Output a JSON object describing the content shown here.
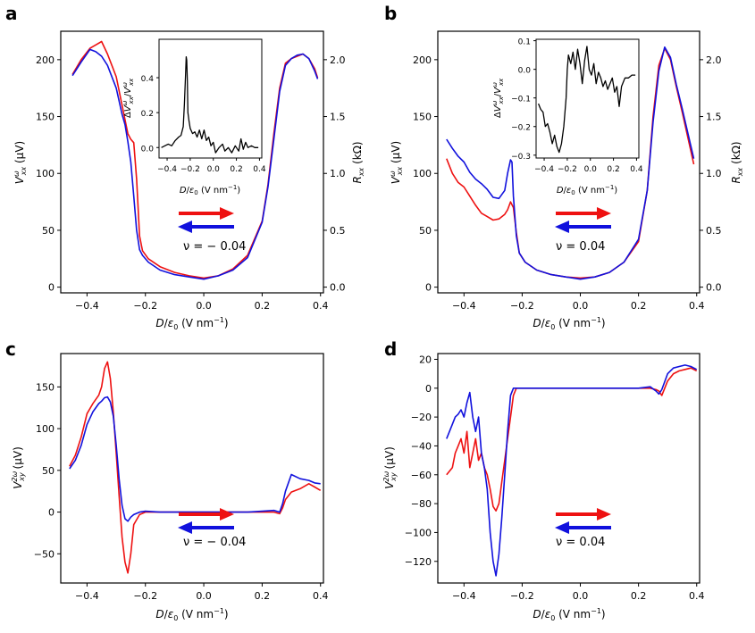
{
  "figure": {
    "panel_labels": [
      "a",
      "b",
      "c",
      "d"
    ],
    "legend_arrows": {
      "forward": "#ee1111",
      "backward": "#1111dd"
    }
  },
  "chart_data": [
    {
      "id": "a",
      "type": "line",
      "label": "a",
      "xlabel": "D/ε₀ (V nm⁻¹)",
      "ylabel": "V_xx^ω (μV)",
      "ylabel_right": "R_xx (kΩ)",
      "xlim": [
        -0.49,
        0.41
      ],
      "ylim": [
        -5,
        225
      ],
      "xticks": [
        -0.4,
        -0.2,
        0.0,
        0.2,
        0.4
      ],
      "xtick_labels": [
        "−0.4",
        "−0.2",
        "0.0",
        "0.2",
        "0.4"
      ],
      "yticks": [
        0,
        50,
        100,
        150,
        200
      ],
      "ytick_labels": [
        "0",
        "50",
        "100",
        "150",
        "200"
      ],
      "yticks_right": [
        0,
        0.5,
        1.0,
        1.5,
        2.0
      ],
      "ytick_labels_right": [
        "0.0",
        "0.5",
        "1.0",
        "1.5",
        "2.0"
      ],
      "annotation": "ν = − 0.04",
      "series": [
        {
          "name": "forward sweep",
          "color": "#ee1111",
          "x": [
            -0.45,
            -0.42,
            -0.39,
            -0.37,
            -0.35,
            -0.33,
            -0.3,
            -0.28,
            -0.26,
            -0.25,
            -0.24,
            -0.23,
            -0.22,
            -0.21,
            -0.19,
            -0.15,
            -0.1,
            -0.05,
            0.0,
            0.05,
            0.1,
            0.15,
            0.2,
            0.22,
            0.24,
            0.26,
            0.28,
            0.3,
            0.32,
            0.34,
            0.36,
            0.38,
            0.39
          ],
          "y": [
            187,
            200,
            210,
            213,
            216,
            205,
            185,
            160,
            135,
            130,
            127,
            95,
            45,
            32,
            25,
            18,
            13,
            10,
            8,
            10,
            16,
            28,
            58,
            90,
            135,
            175,
            197,
            201,
            203,
            205,
            201,
            192,
            184
          ]
        },
        {
          "name": "backward sweep",
          "color": "#1111dd",
          "x": [
            -0.45,
            -0.42,
            -0.39,
            -0.37,
            -0.35,
            -0.33,
            -0.3,
            -0.28,
            -0.27,
            -0.26,
            -0.25,
            -0.24,
            -0.23,
            -0.22,
            -0.21,
            -0.19,
            -0.15,
            -0.1,
            -0.05,
            0.0,
            0.05,
            0.1,
            0.15,
            0.2,
            0.22,
            0.24,
            0.26,
            0.28,
            0.3,
            0.32,
            0.34,
            0.36,
            0.38,
            0.39
          ],
          "y": [
            186,
            198,
            209,
            207,
            203,
            195,
            175,
            152,
            143,
            128,
            110,
            80,
            50,
            33,
            28,
            22,
            15,
            11,
            9,
            7,
            10,
            15,
            26,
            57,
            88,
            130,
            172,
            195,
            201,
            204,
            205,
            201,
            190,
            183
          ]
        }
      ],
      "inset": {
        "xlabel": "D/ε₀ (V nm⁻¹)",
        "ylabel": "ΔV_xx^ω/V_xx^ω",
        "xlim": [
          -0.47,
          0.42
        ],
        "ylim": [
          -0.06,
          0.62
        ],
        "xticks": [
          -0.4,
          -0.2,
          0.0,
          0.2,
          0.4
        ],
        "xtick_labels": [
          "−0.4",
          "−0.2",
          "0.0",
          "0.2",
          "0.4"
        ],
        "yticks": [
          0.0,
          0.2,
          0.4
        ],
        "ytick_labels": [
          "0.0",
          "0.2",
          "0.4"
        ],
        "series": [
          {
            "name": "difference",
            "color": "#000000",
            "x": [
              -0.45,
              -0.42,
              -0.39,
              -0.36,
              -0.33,
              -0.3,
              -0.28,
              -0.26,
              -0.25,
              -0.24,
              -0.235,
              -0.23,
              -0.225,
              -0.22,
              -0.21,
              -0.2,
              -0.18,
              -0.16,
              -0.14,
              -0.12,
              -0.1,
              -0.08,
              -0.06,
              -0.04,
              -0.02,
              0.0,
              0.02,
              0.05,
              0.08,
              0.1,
              0.13,
              0.16,
              0.19,
              0.22,
              0.24,
              0.26,
              0.28,
              0.3,
              0.33,
              0.36,
              0.39
            ],
            "y": [
              0.0,
              0.01,
              0.02,
              0.01,
              0.04,
              0.06,
              0.07,
              0.12,
              0.25,
              0.42,
              0.52,
              0.5,
              0.38,
              0.2,
              0.15,
              0.11,
              0.08,
              0.09,
              0.06,
              0.1,
              0.05,
              0.1,
              0.04,
              0.06,
              0.01,
              0.03,
              -0.03,
              0.0,
              0.02,
              -0.02,
              0.0,
              -0.03,
              0.01,
              -0.02,
              0.05,
              -0.01,
              0.03,
              0.0,
              0.01,
              0.0,
              0.0
            ]
          }
        ]
      }
    },
    {
      "id": "b",
      "type": "line",
      "label": "b",
      "xlabel": "D/ε₀ (V nm⁻¹)",
      "ylabel": "V_xx^ω (μV)",
      "ylabel_right": "R_xx (kΩ)",
      "xlim": [
        -0.49,
        0.41
      ],
      "ylim": [
        -5,
        225
      ],
      "xticks": [
        -0.4,
        -0.2,
        0.0,
        0.2,
        0.4
      ],
      "xtick_labels": [
        "−0.4",
        "−0.2",
        "0.0",
        "0.2",
        "0.4"
      ],
      "yticks": [
        0,
        50,
        100,
        150,
        200
      ],
      "ytick_labels": [
        "0",
        "50",
        "100",
        "150",
        "200"
      ],
      "yticks_right": [
        0,
        0.5,
        1.0,
        1.5,
        2.0
      ],
      "ytick_labels_right": [
        "0.0",
        "0.5",
        "1.0",
        "1.5",
        "2.0"
      ],
      "annotation": "ν = 0.04",
      "series": [
        {
          "name": "forward sweep",
          "color": "#ee1111",
          "x": [
            -0.46,
            -0.44,
            -0.42,
            -0.4,
            -0.38,
            -0.36,
            -0.34,
            -0.32,
            -0.3,
            -0.28,
            -0.26,
            -0.25,
            -0.24,
            -0.23,
            -0.22,
            -0.21,
            -0.19,
            -0.15,
            -0.1,
            -0.05,
            0.0,
            0.05,
            0.1,
            0.15,
            0.2,
            0.23,
            0.25,
            0.27,
            0.29,
            0.31,
            0.33,
            0.35,
            0.37,
            0.39
          ],
          "y": [
            113,
            100,
            92,
            88,
            80,
            72,
            65,
            62,
            59,
            60,
            64,
            68,
            75,
            70,
            48,
            30,
            22,
            15,
            11,
            9,
            8,
            9,
            13,
            22,
            40,
            85,
            150,
            195,
            210,
            200,
            176,
            154,
            131,
            108
          ]
        },
        {
          "name": "backward sweep",
          "color": "#1111dd",
          "x": [
            -0.46,
            -0.44,
            -0.42,
            -0.4,
            -0.38,
            -0.36,
            -0.34,
            -0.32,
            -0.3,
            -0.28,
            -0.26,
            -0.25,
            -0.24,
            -0.235,
            -0.23,
            -0.22,
            -0.21,
            -0.19,
            -0.15,
            -0.1,
            -0.05,
            0.0,
            0.05,
            0.1,
            0.15,
            0.2,
            0.23,
            0.25,
            0.27,
            0.29,
            0.31,
            0.33,
            0.35,
            0.37,
            0.39
          ],
          "y": [
            130,
            122,
            115,
            110,
            101,
            95,
            91,
            86,
            79,
            78,
            85,
            100,
            112,
            110,
            80,
            45,
            30,
            22,
            15,
            11,
            9,
            7,
            9,
            13,
            22,
            42,
            85,
            145,
            190,
            211,
            202,
            178,
            157,
            135,
            113
          ]
        }
      ],
      "inset": {
        "xlabel": "D/ε₀ (V nm⁻¹)",
        "ylabel": "ΔV_xx^ω/V_xx^ω",
        "xlim": [
          -0.47,
          0.42
        ],
        "ylim": [
          -0.31,
          0.105
        ],
        "xticks": [
          -0.4,
          -0.2,
          0.0,
          0.2,
          0.4
        ],
        "xtick_labels": [
          "−0.4",
          "−0.2",
          "0.0",
          "0.2",
          "0.4"
        ],
        "yticks": [
          -0.3,
          -0.2,
          -0.1,
          0.0,
          0.1
        ],
        "ytick_labels": [
          "−0.3",
          "−0.2",
          "−0.1",
          "0.0",
          "0.1"
        ],
        "series": [
          {
            "name": "difference",
            "color": "#000000",
            "x": [
              -0.45,
              -0.43,
              -0.41,
              -0.39,
              -0.37,
              -0.35,
              -0.33,
              -0.31,
              -0.29,
              -0.27,
              -0.25,
              -0.23,
              -0.21,
              -0.2,
              -0.19,
              -0.17,
              -0.15,
              -0.13,
              -0.11,
              -0.09,
              -0.07,
              -0.05,
              -0.03,
              -0.01,
              0.01,
              0.03,
              0.05,
              0.07,
              0.09,
              0.11,
              0.13,
              0.15,
              0.17,
              0.19,
              0.21,
              0.23,
              0.25,
              0.27,
              0.3,
              0.33,
              0.36,
              0.39
            ],
            "y": [
              -0.12,
              -0.14,
              -0.15,
              -0.2,
              -0.19,
              -0.22,
              -0.26,
              -0.23,
              -0.27,
              -0.29,
              -0.26,
              -0.2,
              -0.1,
              0.0,
              0.05,
              0.02,
              0.06,
              0.0,
              0.07,
              0.02,
              -0.05,
              0.03,
              0.08,
              0.0,
              -0.02,
              0.02,
              -0.05,
              -0.01,
              -0.03,
              -0.06,
              -0.04,
              -0.07,
              -0.05,
              -0.03,
              -0.08,
              -0.06,
              -0.13,
              -0.06,
              -0.03,
              -0.03,
              -0.02,
              -0.02
            ]
          }
        ]
      }
    },
    {
      "id": "c",
      "type": "line",
      "label": "c",
      "xlabel": "D/ε₀ (V nm⁻¹)",
      "ylabel": "V_xy^2ω (μV)",
      "xlim": [
        -0.49,
        0.41
      ],
      "ylim": [
        -85,
        190
      ],
      "xticks": [
        -0.4,
        -0.2,
        0.0,
        0.2,
        0.4
      ],
      "xtick_labels": [
        "−0.4",
        "−0.2",
        "0.0",
        "0.2",
        "0.4"
      ],
      "yticks": [
        -50,
        0,
        50,
        100,
        150
      ],
      "ytick_labels": [
        "−50",
        "0",
        "50",
        "100",
        "150"
      ],
      "annotation": "ν = − 0.04",
      "series": [
        {
          "name": "forward sweep",
          "color": "#ee1111",
          "x": [
            -0.46,
            -0.44,
            -0.42,
            -0.4,
            -0.38,
            -0.36,
            -0.35,
            -0.34,
            -0.33,
            -0.32,
            -0.31,
            -0.3,
            -0.29,
            -0.28,
            -0.27,
            -0.26,
            -0.25,
            -0.24,
            -0.22,
            -0.2,
            -0.15,
            -0.1,
            -0.05,
            0.0,
            0.05,
            0.1,
            0.15,
            0.2,
            0.24,
            0.26,
            0.27,
            0.28,
            0.3,
            0.33,
            0.36,
            0.38,
            0.4
          ],
          "y": [
            55,
            68,
            90,
            118,
            130,
            140,
            150,
            172,
            180,
            160,
            120,
            70,
            20,
            -30,
            -60,
            -73,
            -50,
            -15,
            -3,
            0,
            0,
            0,
            0,
            0,
            0,
            0,
            0,
            0,
            0,
            -2,
            5,
            15,
            24,
            28,
            34,
            30,
            26
          ]
        },
        {
          "name": "backward sweep",
          "color": "#1111dd",
          "x": [
            -0.46,
            -0.44,
            -0.42,
            -0.4,
            -0.38,
            -0.36,
            -0.35,
            -0.34,
            -0.33,
            -0.32,
            -0.31,
            -0.3,
            -0.29,
            -0.28,
            -0.27,
            -0.26,
            -0.25,
            -0.24,
            -0.22,
            -0.2,
            -0.15,
            -0.1,
            -0.05,
            0.0,
            0.05,
            0.1,
            0.15,
            0.2,
            0.24,
            0.26,
            0.27,
            0.28,
            0.3,
            0.33,
            0.36,
            0.38,
            0.4
          ],
          "y": [
            52,
            62,
            80,
            105,
            120,
            130,
            133,
            137,
            138,
            132,
            115,
            80,
            40,
            8,
            -8,
            -11,
            -6,
            -3,
            0,
            1,
            0,
            0,
            0,
            0,
            0,
            0,
            0,
            1,
            2,
            0,
            10,
            25,
            45,
            40,
            38,
            35,
            34
          ]
        }
      ]
    },
    {
      "id": "d",
      "type": "line",
      "label": "d",
      "xlabel": "D/ε₀ (V nm⁻¹)",
      "ylabel": "V_xy^2ω (μV)",
      "xlim": [
        -0.49,
        0.41
      ],
      "ylim": [
        -135,
        24
      ],
      "xticks": [
        -0.4,
        -0.2,
        0.0,
        0.2,
        0.4
      ],
      "xtick_labels": [
        "−0.4",
        "−0.2",
        "0.0",
        "0.2",
        "0.4"
      ],
      "yticks": [
        -120,
        -100,
        -80,
        -60,
        -40,
        -20,
        0,
        20
      ],
      "ytick_labels": [
        "−120",
        "−100",
        "−80",
        "−60",
        "−40",
        "−20",
        "0",
        "20"
      ],
      "annotation": "ν = 0.04",
      "series": [
        {
          "name": "forward sweep",
          "color": "#ee1111",
          "x": [
            -0.46,
            -0.44,
            -0.43,
            -0.42,
            -0.41,
            -0.4,
            -0.39,
            -0.38,
            -0.37,
            -0.36,
            -0.35,
            -0.34,
            -0.33,
            -0.32,
            -0.31,
            -0.3,
            -0.29,
            -0.28,
            -0.27,
            -0.26,
            -0.25,
            -0.24,
            -0.23,
            -0.22,
            -0.2,
            -0.15,
            -0.1,
            -0.05,
            0.0,
            0.05,
            0.1,
            0.15,
            0.2,
            0.24,
            0.26,
            0.27,
            0.28,
            0.3,
            0.32,
            0.34,
            0.36,
            0.38,
            0.4
          ],
          "y": [
            -60,
            -55,
            -45,
            -40,
            -35,
            -45,
            -30,
            -55,
            -45,
            -35,
            -50,
            -45,
            -55,
            -60,
            -70,
            -82,
            -85,
            -80,
            -65,
            -50,
            -35,
            -20,
            -5,
            0,
            0,
            0,
            0,
            0,
            0,
            0,
            0,
            0,
            0,
            0,
            -1,
            -2,
            -5,
            5,
            10,
            12,
            13,
            14,
            12
          ]
        },
        {
          "name": "backward sweep",
          "color": "#1111dd",
          "x": [
            -0.46,
            -0.44,
            -0.43,
            -0.42,
            -0.41,
            -0.4,
            -0.39,
            -0.38,
            -0.37,
            -0.36,
            -0.35,
            -0.34,
            -0.33,
            -0.32,
            -0.31,
            -0.3,
            -0.29,
            -0.28,
            -0.27,
            -0.26,
            -0.25,
            -0.24,
            -0.23,
            -0.22,
            -0.2,
            -0.15,
            -0.1,
            -0.05,
            0.0,
            0.05,
            0.1,
            0.15,
            0.2,
            0.24,
            0.26,
            0.27,
            0.28,
            0.3,
            0.32,
            0.34,
            0.36,
            0.38,
            0.4
          ],
          "y": [
            -35,
            -25,
            -20,
            -18,
            -15,
            -20,
            -10,
            -3,
            -20,
            -30,
            -20,
            -45,
            -55,
            -70,
            -100,
            -120,
            -130,
            -115,
            -90,
            -60,
            -30,
            -5,
            0,
            0,
            0,
            0,
            0,
            0,
            0,
            0,
            0,
            0,
            0,
            1,
            -2,
            -4,
            -1,
            10,
            14,
            15,
            16,
            15,
            13
          ]
        }
      ]
    }
  ]
}
